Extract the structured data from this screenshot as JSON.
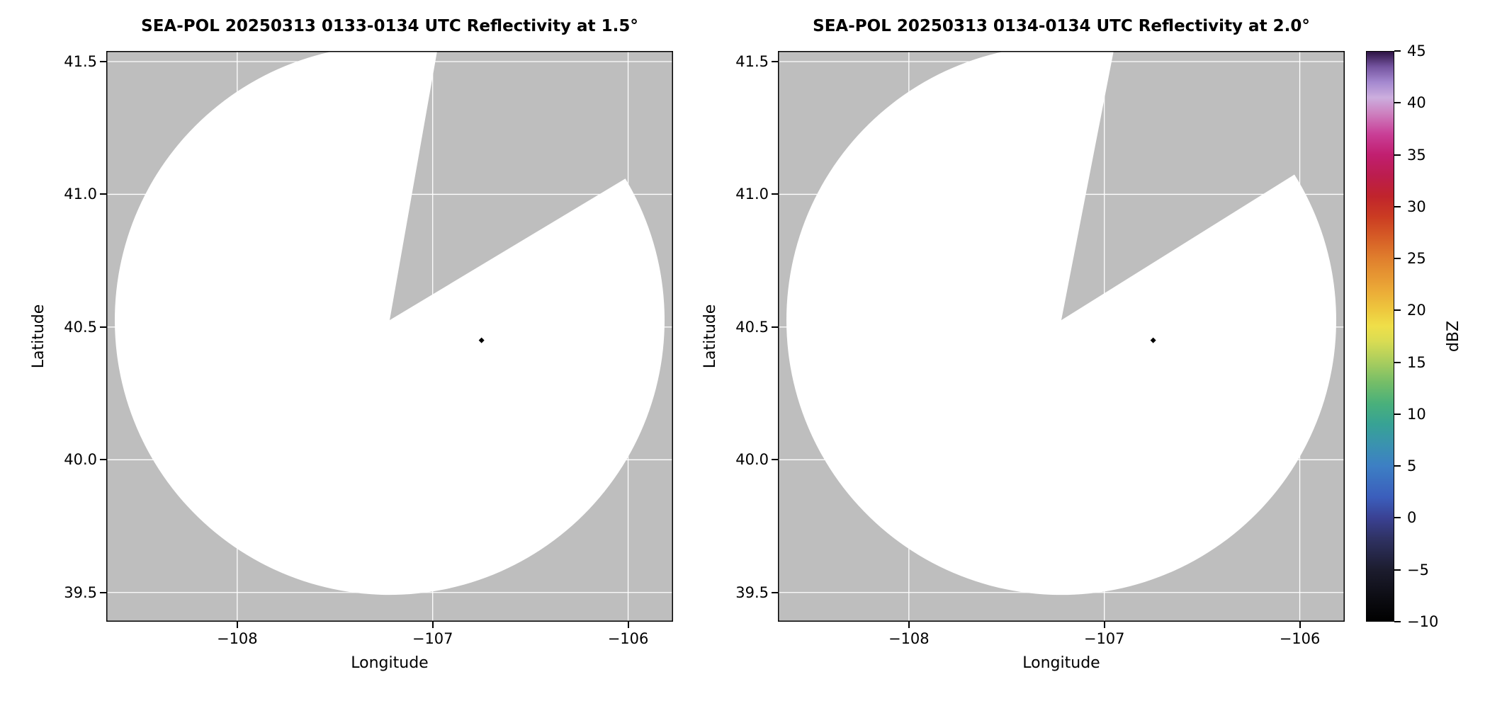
{
  "figure": {
    "background": "#ffffff",
    "panel_bg": "#bebebe",
    "scan_fill": "#ffffff",
    "grid_color": "#ffffff",
    "point_color": "#000000"
  },
  "chart_data": [
    {
      "type": "radar_ppi_map",
      "title": "SEA-POL 20250313 0133-0134 UTC Reflectivity at 1.5°",
      "xlabel": "Longitude",
      "ylabel": "Latitude",
      "xlim": [
        -108.67,
        -105.77
      ],
      "ylim": [
        39.39,
        41.54
      ],
      "xticks": [
        -108,
        -107,
        -106
      ],
      "xtick_labels": [
        "−108",
        "−107",
        "−106"
      ],
      "yticks": [
        39.5,
        40.0,
        40.5,
        41.0,
        41.5
      ],
      "ytick_labels": [
        "39.5",
        "40.0",
        "40.5",
        "41.0",
        "41.5"
      ],
      "grid": true,
      "legend": "none",
      "radar_center_lonlat": [
        -107.22,
        40.526
      ],
      "scan_radius_deg_lat": 1.035,
      "blocked_sector_azimuth_deg": [
        10,
        59
      ],
      "points": [
        {
          "lon": -106.75,
          "lat": 40.45,
          "dbz": -8
        }
      ]
    },
    {
      "type": "radar_ppi_map",
      "title": "SEA-POL 20250313 0134-0134 UTC Reflectivity at 2.0°",
      "xlabel": "Longitude",
      "ylabel": "Latitude",
      "xlim": [
        -108.67,
        -105.77
      ],
      "ylim": [
        39.39,
        41.54
      ],
      "xticks": [
        -108,
        -107,
        -106
      ],
      "xtick_labels": [
        "−108",
        "−107",
        "−106"
      ],
      "yticks": [
        39.5,
        40.0,
        40.5,
        41.0,
        41.5
      ],
      "ytick_labels": [
        "39.5",
        "40.0",
        "40.5",
        "41.0",
        "41.5"
      ],
      "grid": true,
      "legend": "none",
      "radar_center_lonlat": [
        -107.22,
        40.526
      ],
      "scan_radius_deg_lat": 1.035,
      "blocked_sector_azimuth_deg": [
        11,
        58
      ],
      "points": [
        {
          "lon": -106.75,
          "lat": 40.45,
          "dbz": -8
        }
      ]
    }
  ],
  "colorbar": {
    "label": "dBZ",
    "min": -10,
    "max": 45,
    "tick_values": [
      45,
      40,
      35,
      30,
      25,
      20,
      15,
      10,
      5,
      0,
      -5,
      -10
    ],
    "tick_labels": [
      "45",
      "40",
      "35",
      "30",
      "25",
      "20",
      "15",
      "10",
      "5",
      "0",
      "−5",
      "−10"
    ],
    "colormap_stops": [
      {
        "value": -10,
        "color": "#000000"
      },
      {
        "value": -8,
        "color": "#0b0b10"
      },
      {
        "value": -5,
        "color": "#1c1c2e"
      },
      {
        "value": -2,
        "color": "#2f3263"
      },
      {
        "value": 0,
        "color": "#3a4193"
      },
      {
        "value": 2,
        "color": "#3b5ebc"
      },
      {
        "value": 5,
        "color": "#3d7fc4"
      },
      {
        "value": 7,
        "color": "#3a92b0"
      },
      {
        "value": 9,
        "color": "#37a295"
      },
      {
        "value": 11,
        "color": "#49b07b"
      },
      {
        "value": 13,
        "color": "#74bd68"
      },
      {
        "value": 15,
        "color": "#a8cd5e"
      },
      {
        "value": 17,
        "color": "#d9dc53"
      },
      {
        "value": 18.5,
        "color": "#efdf49"
      },
      {
        "value": 20,
        "color": "#eec83e"
      },
      {
        "value": 22,
        "color": "#eba937"
      },
      {
        "value": 25,
        "color": "#e07f2d"
      },
      {
        "value": 27,
        "color": "#d65d26"
      },
      {
        "value": 29,
        "color": "#cb3c22"
      },
      {
        "value": 31,
        "color": "#c0242c"
      },
      {
        "value": 33,
        "color": "#bc1d4e"
      },
      {
        "value": 35,
        "color": "#c11f70"
      },
      {
        "value": 37,
        "color": "#c93f97"
      },
      {
        "value": 39,
        "color": "#cd81c0"
      },
      {
        "value": 40.5,
        "color": "#ccaede"
      },
      {
        "value": 42,
        "color": "#a488cf"
      },
      {
        "value": 43.5,
        "color": "#74549f"
      },
      {
        "value": 45,
        "color": "#2b1240"
      }
    ]
  }
}
